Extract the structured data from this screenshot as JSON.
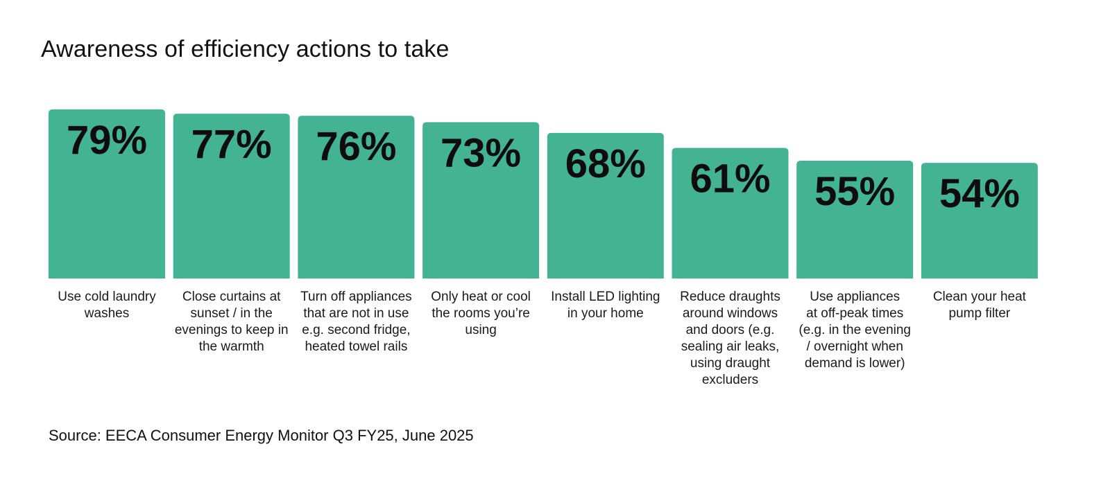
{
  "chart_data": {
    "type": "bar",
    "title": "Awareness of efficiency actions to take",
    "categories": [
      "Use cold laundry washes",
      "Close curtains at sunset / in the evenings to keep in the warmth",
      "Turn off appliances that are not in use e.g. second fridge, heated towel rails",
      "Only heat or cool the rooms you’re using",
      "Install LED lighting in your home",
      "Reduce draughts around windows and doors (e.g. sealing air leaks, using draught excluders",
      "Use appliances at off-peak times (e.g. in the evening / overnight when demand is lower)",
      "Clean your heat pump filter"
    ],
    "values": [
      79,
      77,
      76,
      73,
      68,
      61,
      55,
      54
    ],
    "value_labels": [
      "79%",
      "77%",
      "76%",
      "73%",
      "68%",
      "61%",
      "55%",
      "54%"
    ],
    "value_suffix": "%",
    "xlabel": "",
    "ylabel": "",
    "ylim": [
      0,
      100
    ],
    "grid": false,
    "legend": "none",
    "bar_color": "#43b394"
  },
  "footer": {
    "source": "Source: EECA Consumer Energy Monitor Q3 FY25, June 2025"
  }
}
